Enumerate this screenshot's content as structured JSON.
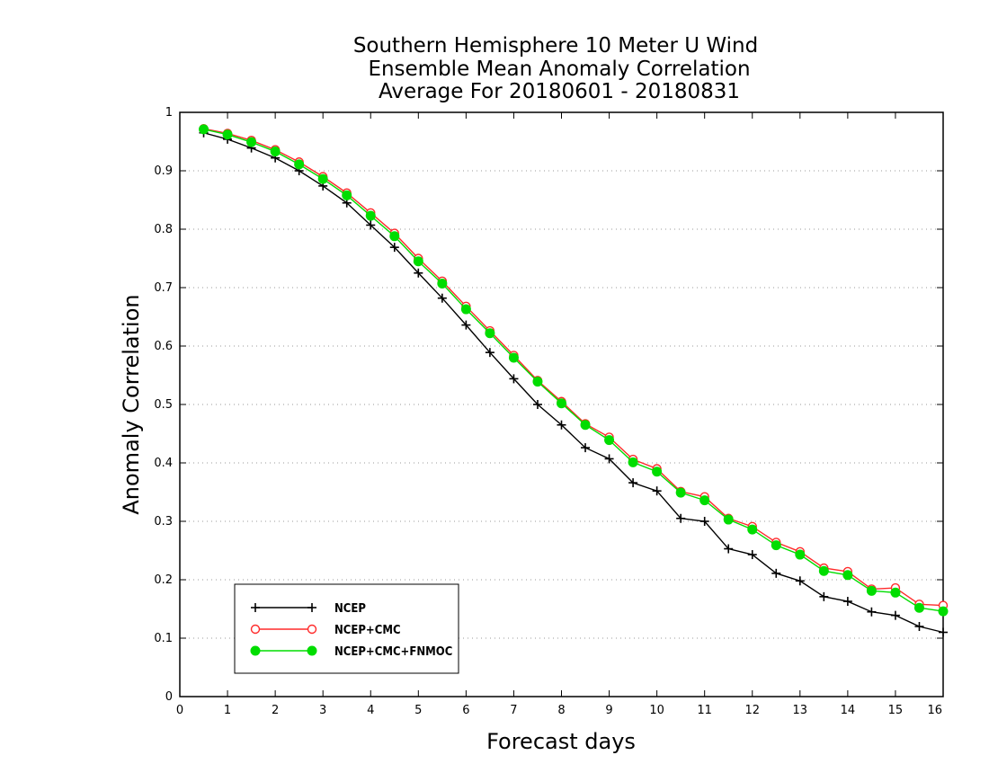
{
  "chart_data": {
    "type": "line",
    "title": [
      "Southern Hemisphere 10 Meter U Wind",
      "Ensemble Mean Anomaly Correlation",
      "Average For 20180601 - 20180831"
    ],
    "xlabel": "Forecast days",
    "ylabel": "Anomaly Correlation",
    "xlim": [
      0,
      16
    ],
    "ylim": [
      0,
      1
    ],
    "xticks": [
      "0",
      "1",
      "2",
      "3",
      "4",
      "5",
      "6",
      "7",
      "8",
      "9",
      "10",
      "11",
      "12",
      "13",
      "14",
      "15",
      "16"
    ],
    "yticks": [
      "0",
      "0.1",
      "0.2",
      "0.3",
      "0.4",
      "0.5",
      "0.6",
      "0.7",
      "0.8",
      "0.9",
      "1"
    ],
    "grid": true,
    "legend_position": "bottom-left",
    "x": [
      0.5,
      1,
      1.5,
      2,
      2.5,
      3,
      3.5,
      4,
      4.5,
      5,
      5.5,
      6,
      6.5,
      7,
      7.5,
      8,
      8.5,
      9,
      9.5,
      10,
      10.5,
      11,
      11.5,
      12,
      12.5,
      13,
      13.5,
      14,
      14.5,
      15,
      15.5,
      16
    ],
    "series": [
      {
        "name": "NCEP",
        "color": "#000000",
        "marker": "plus",
        "values": [
          0.965,
          0.954,
          0.939,
          0.922,
          0.9,
          0.874,
          0.845,
          0.807,
          0.769,
          0.725,
          0.682,
          0.636,
          0.589,
          0.544,
          0.5,
          0.465,
          0.426,
          0.407,
          0.366,
          0.352,
          0.305,
          0.3,
          0.253,
          0.243,
          0.211,
          0.198,
          0.171,
          0.163,
          0.145,
          0.139,
          0.12,
          0.11
        ]
      },
      {
        "name": "NCEP+CMC",
        "color": "#ff2a2a",
        "marker": "open-circle",
        "values": [
          0.972,
          0.964,
          0.952,
          0.936,
          0.915,
          0.89,
          0.862,
          0.828,
          0.793,
          0.75,
          0.711,
          0.668,
          0.626,
          0.584,
          0.541,
          0.505,
          0.467,
          0.444,
          0.406,
          0.39,
          0.351,
          0.342,
          0.305,
          0.291,
          0.264,
          0.248,
          0.22,
          0.214,
          0.184,
          0.186,
          0.158,
          0.156
        ]
      },
      {
        "name": "NCEP+CMC+FNMOC",
        "color": "#00dd00",
        "marker": "filled-circle",
        "values": [
          0.971,
          0.962,
          0.949,
          0.933,
          0.911,
          0.886,
          0.858,
          0.823,
          0.788,
          0.745,
          0.707,
          0.663,
          0.622,
          0.58,
          0.539,
          0.502,
          0.465,
          0.439,
          0.401,
          0.385,
          0.349,
          0.336,
          0.303,
          0.286,
          0.259,
          0.243,
          0.215,
          0.208,
          0.181,
          0.178,
          0.152,
          0.146
        ]
      }
    ]
  }
}
